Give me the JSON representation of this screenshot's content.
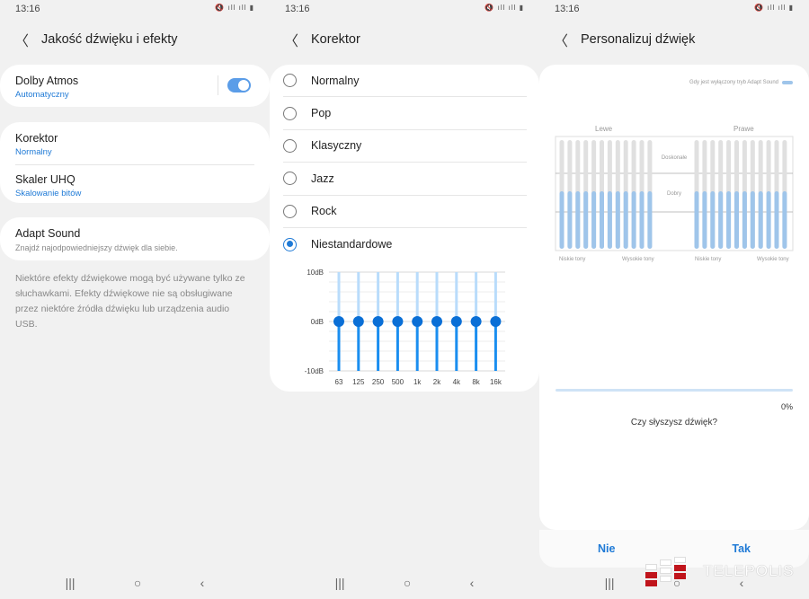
{
  "status": {
    "time": "13:16",
    "icons": "mute-icon volte-lte-icon signal-icon battery-icon"
  },
  "screen1": {
    "title": "Jakość dźwięku i efekty",
    "dolby": {
      "title": "Dolby Atmos",
      "sub": "Automatyczny",
      "toggle_on": true
    },
    "korektor": {
      "title": "Korektor",
      "sub": "Normalny"
    },
    "uhq": {
      "title": "Skaler UHQ",
      "sub": "Skalowanie bitów"
    },
    "adapt": {
      "title": "Adapt Sound",
      "sub": "Znajdź najodpowiedniejszy dźwięk dla siebie."
    },
    "note": "Niektóre efekty dźwiękowe mogą być używane tylko ze słuchawkami. Efekty dźwiękowe nie są obsługiwane przez niektóre źródła dźwięku lub urządzenia audio USB."
  },
  "screen2": {
    "title": "Korektor",
    "options": [
      "Normalny",
      "Pop",
      "Klasyczny",
      "Jazz",
      "Rock",
      "Niestandardowe"
    ],
    "selected": "Niestandardowe"
  },
  "chart_data": {
    "type": "bar",
    "categories": [
      "63",
      "125",
      "250",
      "500",
      "1k",
      "2k",
      "4k",
      "8k",
      "16k"
    ],
    "values": [
      0,
      0,
      0,
      0,
      0,
      0,
      0,
      0,
      0
    ],
    "ylim": [
      -10,
      10
    ],
    "yticks": [
      "10dB",
      "0dB",
      "-10dB"
    ],
    "grid": true,
    "colors": {
      "handle": "#0a6fd6",
      "upper": "#b9dcfb",
      "lower": "#1a8ef0"
    }
  },
  "screen3": {
    "title": "Personalizuj dźwięk",
    "legend": "Gdy jest wyłączony tryb Adapt Sound",
    "left": "Lewe",
    "right": "Prawe",
    "excellent": "Doskonałe",
    "good": "Dobry",
    "low": "Niskie tony",
    "high": "Wysokie tony",
    "progress": "0%",
    "progress_value": 0,
    "question": "Czy słyszysz dźwięk?",
    "no": "Nie",
    "yes": "Tak"
  },
  "watermark": "TELEPOLIS",
  "nav": {
    "recent": "|||",
    "home": "○",
    "back": "‹"
  }
}
